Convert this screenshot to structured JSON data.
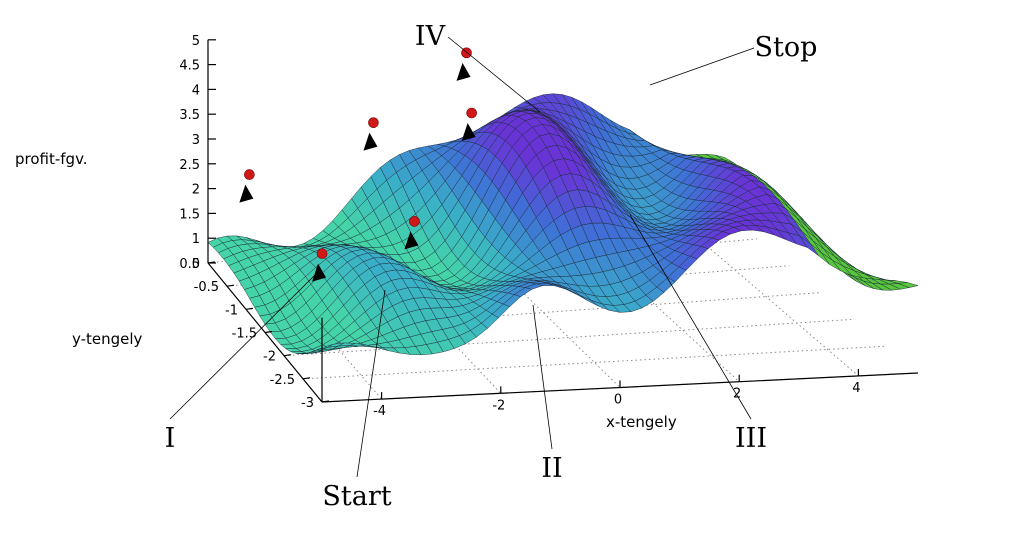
{
  "chart_data": {
    "type": "surface3d",
    "xlabel": "x-tengely",
    "ylabel": "y-tengely",
    "zlabel": "profit-fgv.",
    "xlim": [
      -5,
      5
    ],
    "ylim": [
      -3,
      0
    ],
    "zlim": [
      0.5,
      5
    ],
    "x_ticks": [
      -4,
      -2,
      0,
      2,
      4
    ],
    "y_ticks": [
      0,
      -0.5,
      -1,
      -1.5,
      -2,
      -2.5,
      -3
    ],
    "z_ticks": [
      0.5,
      1,
      1.5,
      2,
      2.5,
      3,
      3.5,
      4,
      4.5,
      5
    ],
    "x_tick_labels": [
      "-4",
      "-2",
      "0",
      "2",
      "4"
    ],
    "y_tick_labels": [
      "0",
      "-0.5",
      "-1",
      "-1.5",
      "-2",
      "-2.5",
      "-3"
    ],
    "z_tick_labels": [
      "0.5",
      "1",
      "1.5",
      "2",
      "2.5",
      "3",
      "3.5",
      "4",
      "4.5",
      "5"
    ],
    "grid": true,
    "colormap": [
      "#45d4a8",
      "#3ab0c8",
      "#3f6fd6",
      "#6a32d6",
      "#58c83c"
    ],
    "path_points": [
      {
        "x": -3.6,
        "y": -1.0,
        "z": 1.5
      },
      {
        "x": -4.2,
        "y": 0.0,
        "z": 2.2
      },
      {
        "x": -1.9,
        "y": -1.0,
        "z": 2.0
      },
      {
        "x": -1.8,
        "y": 0.0,
        "z": 3.0
      },
      {
        "x": 0.1,
        "y": 0.0,
        "z": 3.0
      },
      {
        "x": 0.2,
        "y": 0.2,
        "z": 4.0
      }
    ],
    "annotations": [
      {
        "label": "Start",
        "target": 0
      },
      {
        "label": "I",
        "target": 1
      },
      {
        "label": "II",
        "target": 2
      },
      {
        "label": "III",
        "target": 4
      },
      {
        "label": "IV",
        "target": 3
      },
      {
        "label": "Stop",
        "target": 5
      }
    ]
  }
}
